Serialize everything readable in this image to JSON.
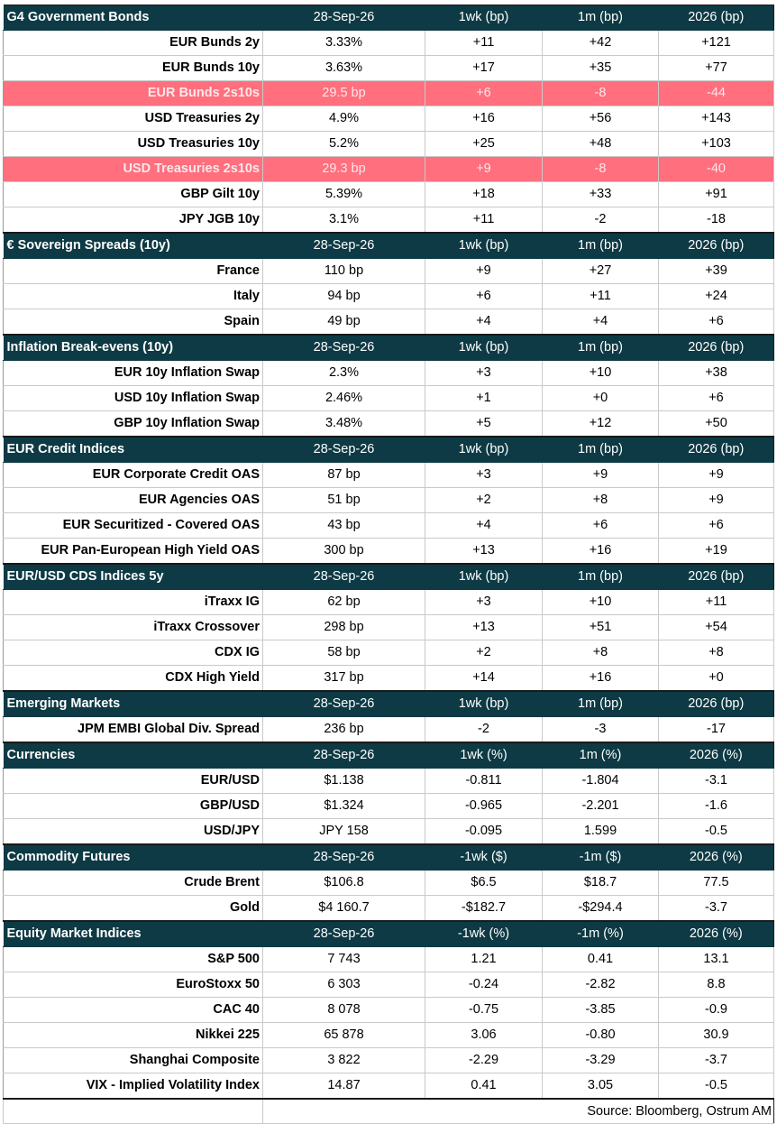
{
  "colors": {
    "header_bg": "#0d3a44",
    "header_text": "#ffffff",
    "highlight_bg": "#ff6f7d",
    "grid": "#c9c9c9"
  },
  "sections": [
    {
      "title": "G4 Government Bonds",
      "cols": [
        "28-Sep-26",
        "1wk (bp)",
        "1m (bp)",
        "2026 (bp)"
      ],
      "rows": [
        {
          "label": "EUR Bunds 2y",
          "values": [
            "3.33%",
            "+11",
            "+42",
            "+121"
          ]
        },
        {
          "label": "EUR Bunds 10y",
          "values": [
            "3.63%",
            "+17",
            "+35",
            "+77"
          ]
        },
        {
          "label": "EUR Bunds 2s10s",
          "values": [
            "29.5 bp",
            "+6",
            "-8",
            "-44"
          ],
          "highlight": true
        },
        {
          "label": "USD Treasuries 2y",
          "values": [
            "4.9%",
            "+16",
            "+56",
            "+143"
          ]
        },
        {
          "label": "USD Treasuries 10y",
          "values": [
            "5.2%",
            "+25",
            "+48",
            "+103"
          ]
        },
        {
          "label": "USD Treasuries 2s10s",
          "values": [
            "29.3 bp",
            "+9",
            "-8",
            "-40"
          ],
          "highlight": true
        },
        {
          "label": "GBP Gilt 10y",
          "values": [
            "5.39%",
            "+18",
            "+33",
            "+91"
          ]
        },
        {
          "label": "JPY JGB  10y",
          "values": [
            "3.1%",
            "+11",
            "-2",
            "-18"
          ]
        }
      ]
    },
    {
      "title": "€ Sovereign Spreads (10y)",
      "cols": [
        "28-Sep-26",
        "1wk (bp)",
        "1m (bp)",
        "2026 (bp)"
      ],
      "rows": [
        {
          "label": "France",
          "values": [
            "110 bp",
            "+9",
            "+27",
            "+39"
          ]
        },
        {
          "label": "Italy",
          "values": [
            "94 bp",
            "+6",
            "+11",
            "+24"
          ]
        },
        {
          "label": "Spain",
          "values": [
            "49 bp",
            "+4",
            "+4",
            "+6"
          ]
        }
      ]
    },
    {
      "title": "Inflation Break-evens (10y)",
      "cols": [
        "28-Sep-26",
        "1wk (bp)",
        "1m (bp)",
        "2026 (bp)"
      ],
      "rows": [
        {
          "label": "EUR 10y Inflation Swap",
          "values": [
            "2.3%",
            "+3",
            "+10",
            "+38"
          ]
        },
        {
          "label": "USD 10y Inflation Swap",
          "values": [
            "2.46%",
            "+1",
            "+0",
            "+6"
          ]
        },
        {
          "label": "GBP 10y Inflation Swap",
          "values": [
            "3.48%",
            "+5",
            "+12",
            "+50"
          ]
        }
      ]
    },
    {
      "title": "EUR Credit Indices",
      "cols": [
        "28-Sep-26",
        "1wk (bp)",
        "1m (bp)",
        "2026 (bp)"
      ],
      "rows": [
        {
          "label": "EUR Corporate Credit OAS",
          "values": [
            "87 bp",
            "+3",
            "+9",
            "+9"
          ]
        },
        {
          "label": "EUR Agencies OAS",
          "values": [
            "51 bp",
            "+2",
            "+8",
            "+9"
          ]
        },
        {
          "label": "EUR Securitized - Covered OAS",
          "values": [
            "43 bp",
            "+4",
            "+6",
            "+6"
          ]
        },
        {
          "label": "EUR Pan-European High Yield OAS",
          "values": [
            "300 bp",
            "+13",
            "+16",
            "+19"
          ]
        }
      ]
    },
    {
      "title": "EUR/USD CDS Indices 5y",
      "cols": [
        "28-Sep-26",
        "1wk (bp)",
        "1m (bp)",
        "2026 (bp)"
      ],
      "rows": [
        {
          "label": "iTraxx IG",
          "values": [
            "62 bp",
            "+3",
            "+10",
            "+11"
          ]
        },
        {
          "label": "iTraxx Crossover",
          "values": [
            "298 bp",
            "+13",
            "+51",
            "+54"
          ]
        },
        {
          "label": "CDX IG",
          "values": [
            "58 bp",
            "+2",
            "+8",
            "+8"
          ]
        },
        {
          "label": "CDX High Yield",
          "values": [
            "317 bp",
            "+14",
            "+16",
            "+0"
          ]
        }
      ]
    },
    {
      "title": "Emerging Markets",
      "cols": [
        "28-Sep-26",
        "1wk (bp)",
        "1m (bp)",
        "2026 (bp)"
      ],
      "rows": [
        {
          "label": "JPM EMBI Global Div. Spread",
          "values": [
            "236 bp",
            "-2",
            "-3",
            "-17"
          ]
        }
      ]
    },
    {
      "title": "Currencies",
      "cols": [
        "28-Sep-26",
        "1wk (%)",
        "1m (%)",
        "2026 (%)"
      ],
      "rows": [
        {
          "label": "EUR/USD",
          "values": [
            "$1.138",
            "-0.811",
            "-1.804",
            "-3.1"
          ]
        },
        {
          "label": "GBP/USD",
          "values": [
            "$1.324",
            "-0.965",
            "-2.201",
            "-1.6"
          ]
        },
        {
          "label": "USD/JPY",
          "values": [
            "JPY 158",
            "-0.095",
            "1.599",
            "-0.5"
          ]
        }
      ]
    },
    {
      "title": "Commodity Futures",
      "cols": [
        "28-Sep-26",
        "-1wk ($)",
        "-1m ($)",
        "2026 (%)"
      ],
      "rows": [
        {
          "label": "Crude Brent",
          "values": [
            "$106.8",
            "$6.5",
            "$18.7",
            "77.5"
          ]
        },
        {
          "label": "Gold",
          "values": [
            "$4 160.7",
            "-$182.7",
            "-$294.4",
            "-3.7"
          ]
        }
      ]
    },
    {
      "title": "Equity Market Indices",
      "cols": [
        "28-Sep-26",
        "-1wk (%)",
        "-1m (%)",
        "2026 (%)"
      ],
      "rows": [
        {
          "label": "S&P 500",
          "values": [
            "7 743",
            "1.21",
            "0.41",
            "13.1"
          ]
        },
        {
          "label": "EuroStoxx 50",
          "values": [
            "6 303",
            "-0.24",
            "-2.82",
            "8.8"
          ]
        },
        {
          "label": "CAC 40",
          "values": [
            "8 078",
            "-0.75",
            "-3.85",
            "-0.9"
          ]
        },
        {
          "label": "Nikkei 225",
          "values": [
            "65 878",
            "3.06",
            "-0.80",
            "30.9"
          ]
        },
        {
          "label": "Shanghai Composite",
          "values": [
            "3 822",
            "-2.29",
            "-3.29",
            "-3.7"
          ]
        },
        {
          "label": "VIX - Implied Volatility Index",
          "values": [
            "14.87",
            "0.41",
            "3.05",
            "-0.5"
          ]
        }
      ]
    }
  ],
  "source": "Source: Bloomberg, Ostrum AM"
}
